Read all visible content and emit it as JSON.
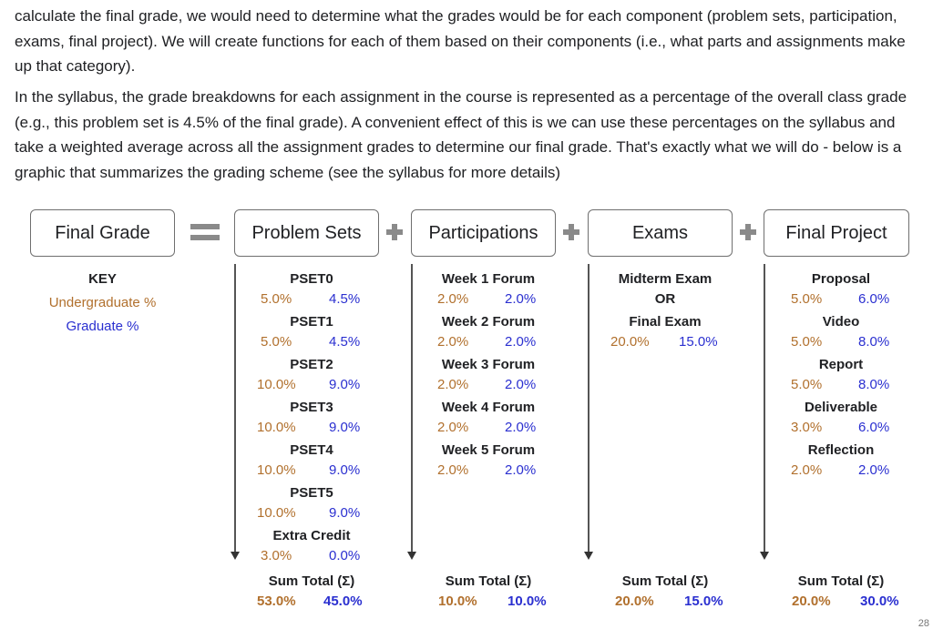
{
  "paragraphs": [
    "calculate the final grade, we would need to determine what the grades would be for each component (problem sets, participation, exams, final project). We will create functions for each of them based on their components (i.e., what parts and assignments make up that category).",
    "In the syllabus, the grade breakdowns for each assignment in the course is represented as a percentage of the overall class grade (e.g., this problem set is 4.5% of the final grade). A convenient effect of this is we can use these percentages on the syllabus and take a weighted average across all the assignment grades to determine our final grade. That's exactly what we will do - below is a graphic that summarizes the grading scheme (see the syllabus for more details)"
  ],
  "boxes": {
    "final": "Final Grade",
    "psets": "Problem Sets",
    "participations": "Participations",
    "exams": "Exams",
    "project": "Final Project"
  },
  "key": {
    "title": "KEY",
    "undergrad": "Undergraduate %",
    "grad": "Graduate %"
  },
  "colors": {
    "undergrad": "#b1702d",
    "grad": "#2a2fd0",
    "operator": "#8a8a8a"
  },
  "psets": [
    {
      "name": "PSET0",
      "ug": "5.0%",
      "gr": "4.5%"
    },
    {
      "name": "PSET1",
      "ug": "5.0%",
      "gr": "4.5%"
    },
    {
      "name": "PSET2",
      "ug": "10.0%",
      "gr": "9.0%"
    },
    {
      "name": "PSET3",
      "ug": "10.0%",
      "gr": "9.0%"
    },
    {
      "name": "PSET4",
      "ug": "10.0%",
      "gr": "9.0%"
    },
    {
      "name": "PSET5",
      "ug": "10.0%",
      "gr": "9.0%"
    },
    {
      "name": "Extra Credit",
      "ug": "3.0%",
      "gr": "0.0%"
    }
  ],
  "participations": [
    {
      "name": "Week 1 Forum",
      "ug": "2.0%",
      "gr": "2.0%"
    },
    {
      "name": "Week 2 Forum",
      "ug": "2.0%",
      "gr": "2.0%"
    },
    {
      "name": "Week 3 Forum",
      "ug": "2.0%",
      "gr": "2.0%"
    },
    {
      "name": "Week 4 Forum",
      "ug": "2.0%",
      "gr": "2.0%"
    },
    {
      "name": "Week 5 Forum",
      "ug": "2.0%",
      "gr": "2.0%"
    }
  ],
  "exams": {
    "midterm": "Midterm Exam",
    "or": "OR",
    "final": "Final Exam",
    "ug": "20.0%",
    "gr": "15.0%"
  },
  "project": [
    {
      "name": "Proposal",
      "ug": "5.0%",
      "gr": "6.0%"
    },
    {
      "name": "Video",
      "ug": "5.0%",
      "gr": "8.0%"
    },
    {
      "name": "Report",
      "ug": "5.0%",
      "gr": "8.0%"
    },
    {
      "name": "Deliverable",
      "ug": "3.0%",
      "gr": "6.0%"
    },
    {
      "name": "Reflection",
      "ug": "2.0%",
      "gr": "2.0%"
    }
  ],
  "sums": {
    "label": "Sum Total (Σ)",
    "psets": {
      "ug": "53.0%",
      "gr": "45.0%"
    },
    "participations": {
      "ug": "10.0%",
      "gr": "10.0%"
    },
    "exams": {
      "ug": "20.0%",
      "gr": "15.0%"
    },
    "project": {
      "ug": "20.0%",
      "gr": "30.0%"
    }
  },
  "page_number": "28"
}
